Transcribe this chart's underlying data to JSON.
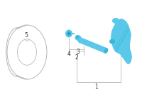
{
  "bg_color": "#ffffff",
  "line_color": "#000000",
  "part_color": "#5ac8e8",
  "part_color2": "#3ab8d8",
  "rim_stroke": "#aaaaaa",
  "label_color": "#333333",
  "leader_color": "#aaaaaa",
  "font_size": 5.5,
  "figsize": [
    2.0,
    1.47
  ],
  "dpi": 100
}
